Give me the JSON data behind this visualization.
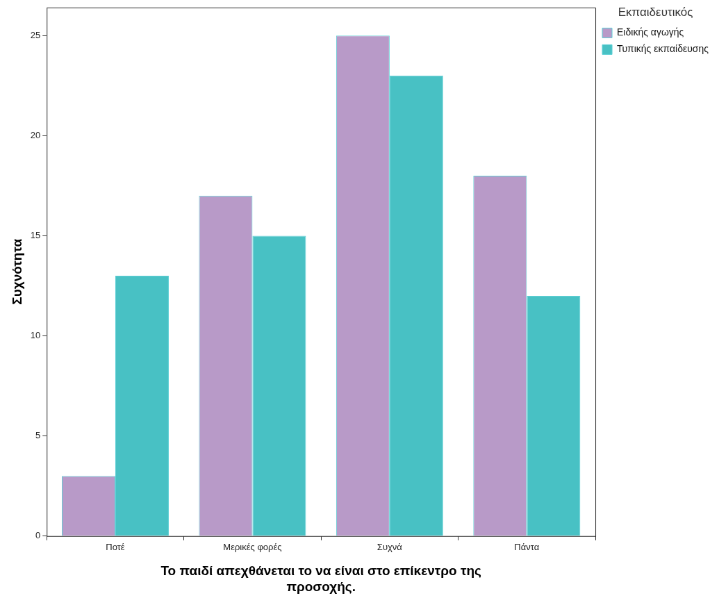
{
  "chart_data": {
    "type": "bar",
    "xlabel": "Το παιδί απεχθάνεται το να είναι στο επίκεντρο της προσοχής.",
    "ylabel": "Συχνότητα",
    "legend_title": "Εκπαιδευτικός",
    "categories": [
      "Ποτέ",
      "Μερικές φορές",
      "Συχνά",
      "Πάντα"
    ],
    "series": [
      {
        "name": "Ειδικής αγωγής",
        "color": "#b89ac8",
        "values": [
          3,
          17,
          25,
          18
        ]
      },
      {
        "name": "Τυπικής εκπαίδευσης",
        "color": "#48c1c4",
        "values": [
          13,
          15,
          23,
          12
        ]
      }
    ],
    "ylim": [
      0,
      26.4
    ],
    "yticks": [
      0,
      5,
      10,
      15,
      20,
      25
    ],
    "grid": false,
    "legend": "top right"
  }
}
